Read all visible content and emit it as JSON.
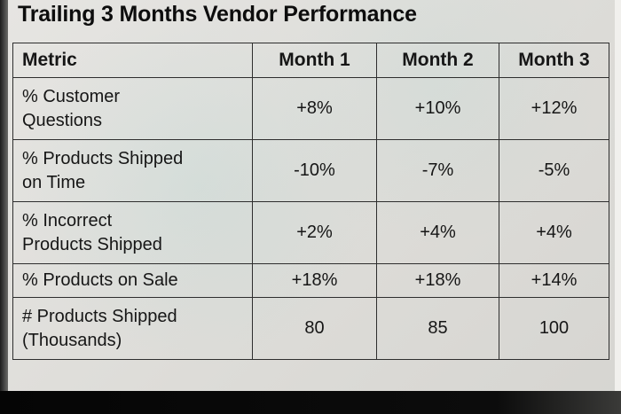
{
  "title": "Trailing 3 Months Vendor Performance",
  "table": {
    "headers": [
      "Metric",
      "Month 1",
      "Month 2",
      "Month 3"
    ],
    "rows": [
      {
        "metric": "% Customer\nQuestions",
        "values": [
          "+8%",
          "+10%",
          "+12%"
        ]
      },
      {
        "metric": "% Products Shipped\non Time",
        "values": [
          "-10%",
          "-7%",
          "-5%"
        ]
      },
      {
        "metric": "% Incorrect\nProducts Shipped",
        "values": [
          "+2%",
          "+4%",
          "+4%"
        ]
      },
      {
        "metric": "% Products on Sale",
        "values": [
          "+18%",
          "+18%",
          "+14%"
        ]
      },
      {
        "metric": "# Products Shipped\n(Thousands)",
        "values": [
          "80",
          "85",
          "100"
        ]
      }
    ]
  },
  "chart_data": {
    "type": "table",
    "title": "Trailing 3 Months Vendor Performance",
    "columns": [
      "Metric",
      "Month 1",
      "Month 2",
      "Month 3"
    ],
    "rows": [
      [
        "% Customer Questions",
        "+8%",
        "+10%",
        "+12%"
      ],
      [
        "% Products Shipped on Time",
        "-10%",
        "-7%",
        "-5%"
      ],
      [
        "% Incorrect Products Shipped",
        "+2%",
        "+4%",
        "+4%"
      ],
      [
        "% Products on Sale",
        "+18%",
        "+18%",
        "+14%"
      ],
      [
        "# Products Shipped (Thousands)",
        "80",
        "85",
        "100"
      ]
    ]
  }
}
